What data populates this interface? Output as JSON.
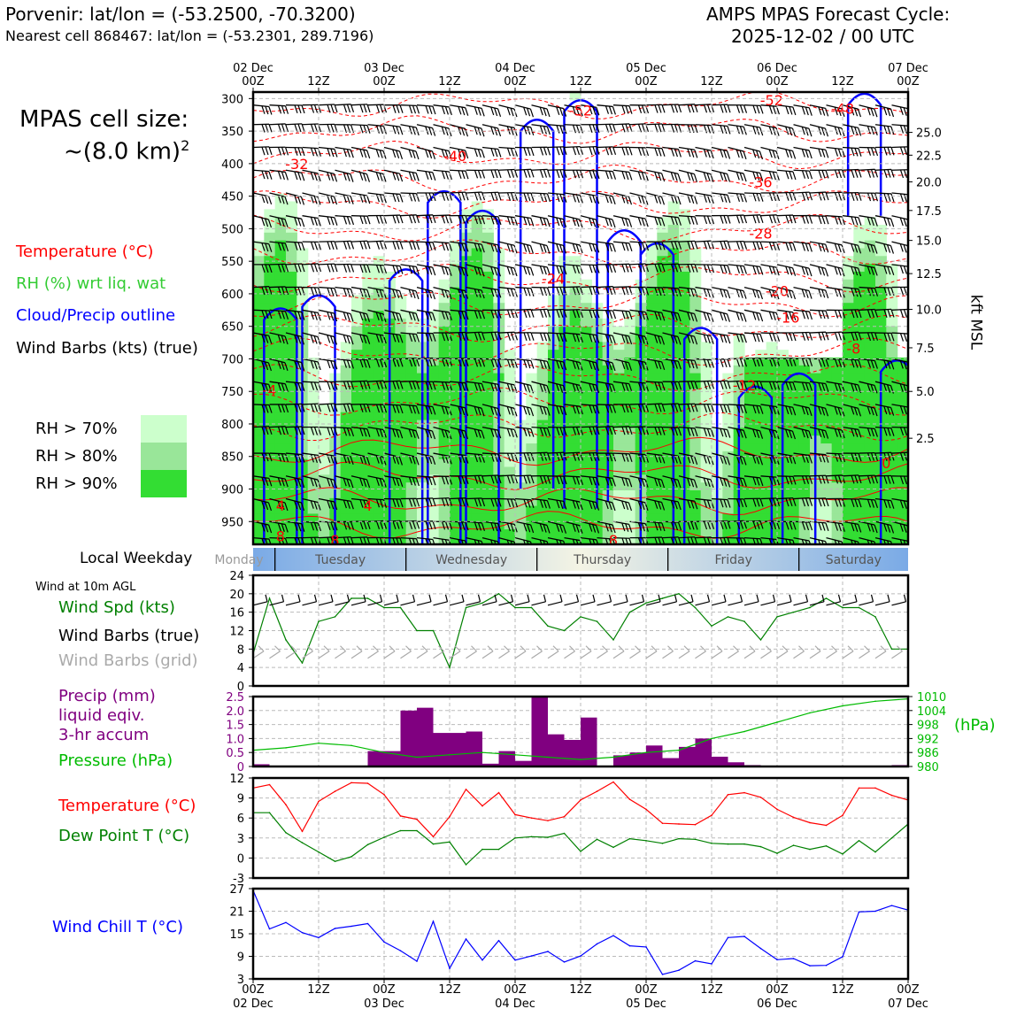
{
  "header": {
    "location": "Porvenir: lat/lon = (-53.2500, -70.3200)",
    "nearest_cell": "Nearest cell 868467: lat/lon = (-53.2301, 289.7196)",
    "cycle_title": "AMPS MPAS Forecast Cycle:",
    "cycle_time": "2025-12-02 / 00 UTC"
  },
  "cell_size": {
    "line1": "MPAS cell size:",
    "line2_prefix": "~(8.0 km)",
    "line2_sup": "2"
  },
  "legend_main": {
    "temperature": "Temperature (°C)",
    "rh": "RH (%) wrt liq. wat",
    "cloud": "Cloud/Precip outline",
    "wind": "Wind Barbs (kts) (true)",
    "rh70": "RH > 70%",
    "rh80": "RH > 80%",
    "rh90": "RH > 90%"
  },
  "colors": {
    "temperature": "#ff0000",
    "rh_label": "#33cc33",
    "cloud": "#0000ff",
    "rh70": "#ccffcc",
    "rh80": "#99e699",
    "rh90": "#33dd33",
    "wind_speed": "#008000",
    "dewpoint": "#008000",
    "precip": "#800080",
    "pressure": "#00bb00",
    "windchill": "#0000ff"
  },
  "weekday": {
    "label": "Local Weekday",
    "days": [
      "Monday",
      "Tuesday",
      "Wednesday",
      "Thursday",
      "Friday",
      "Saturday"
    ]
  },
  "time_axis": {
    "top_dates": [
      "02 Dec",
      "03 Dec",
      "04 Dec",
      "05 Dec",
      "06 Dec",
      "07 Dec"
    ],
    "hours": [
      "00Z",
      "12Z",
      "00Z",
      "12Z",
      "00Z",
      "12Z",
      "00Z",
      "12Z",
      "00Z",
      "12Z",
      "00Z"
    ],
    "bottom_dates": [
      "02 Dec",
      "03 Dec",
      "04 Dec",
      "05 Dec",
      "06 Dec",
      "07 Dec"
    ]
  },
  "panel_wind": {
    "title": "Wind at 10m AGL",
    "speed_label": "Wind Spd (kts)",
    "barbs_true_label": "Wind Barbs (true)",
    "barbs_grid_label": "Wind Barbs (grid)"
  },
  "panel_precip": {
    "label1": "Precip (mm)",
    "label2": "liquid eqiv.",
    "label3": "3-hr accum",
    "pressure_label": "Pressure (hPa)",
    "right_unit": "(hPa)"
  },
  "panel_temp": {
    "temp_label": "Temperature (°C)",
    "dew_label": "Dew Point T (°C)"
  },
  "panel_chill": {
    "label": "Wind Chill T (°C)"
  },
  "right_axis": {
    "title": "kft MSL"
  },
  "chart_data": [
    {
      "type": "heatmap",
      "title": "Time-height cross section",
      "x_hours": [
        0,
        120
      ],
      "ylabel": "Pressure (hPa)",
      "ylim": [
        985,
        290
      ],
      "yticks": [
        300,
        350,
        400,
        450,
        500,
        550,
        600,
        650,
        700,
        750,
        800,
        850,
        900,
        950
      ],
      "right_ticks_kft": [
        "25.0",
        "22.5",
        "20.0",
        "17.5",
        "15.0",
        "12.5",
        "10.0",
        "7.5",
        "5.0",
        "2.5"
      ],
      "right_tick_pressures": [
        352,
        387,
        428,
        472,
        518,
        569,
        624,
        683,
        750,
        822
      ],
      "temperature_labels": [
        {
          "text": "-52",
          "t": 60,
          "p": 318
        },
        {
          "text": "-52",
          "t": 95,
          "p": 302
        },
        {
          "text": "-48",
          "t": 108,
          "p": 315
        },
        {
          "text": "-40",
          "t": 37,
          "p": 388
        },
        {
          "text": "-32",
          "t": 8,
          "p": 400
        },
        {
          "text": "-36",
          "t": 93,
          "p": 428
        },
        {
          "text": "-28",
          "t": 93,
          "p": 507
        },
        {
          "text": "-24",
          "t": 55,
          "p": 576
        },
        {
          "text": "-20",
          "t": 96,
          "p": 595
        },
        {
          "text": "-16",
          "t": 98,
          "p": 636
        },
        {
          "text": "-8",
          "t": 110,
          "p": 684
        },
        {
          "text": "-12",
          "t": 90,
          "p": 740
        },
        {
          "text": "-4",
          "t": 3,
          "p": 748
        },
        {
          "text": "0",
          "t": 116,
          "p": 860
        },
        {
          "text": "4",
          "t": 5,
          "p": 925
        },
        {
          "text": "4",
          "t": 21,
          "p": 925
        },
        {
          "text": "8",
          "t": 5,
          "p": 972
        },
        {
          "text": "8",
          "t": 15,
          "p": 978
        },
        {
          "text": "8",
          "t": 66,
          "p": 978
        }
      ]
    },
    {
      "type": "line",
      "title": "Wind at 10m AGL",
      "ylabel": "Wind Spd (kts)",
      "ylim": [
        0,
        24
      ],
      "yticks": [
        0,
        4,
        8,
        12,
        16,
        20,
        24
      ],
      "x_hours": [
        0,
        3,
        6,
        9,
        12,
        15,
        18,
        21,
        24,
        27,
        30,
        33,
        36,
        39,
        42,
        45,
        48,
        51,
        54,
        57,
        60,
        63,
        66,
        69,
        72,
        75,
        78,
        81,
        84,
        87,
        90,
        93,
        96,
        99,
        102,
        105,
        108,
        111,
        114,
        117,
        120
      ],
      "series": [
        {
          "name": "Wind Spd (kts)",
          "values": [
            7,
            19,
            10,
            5,
            14,
            15,
            19,
            19,
            17,
            17,
            12,
            12,
            4,
            17,
            18,
            20,
            17,
            17,
            13,
            12,
            15,
            14,
            10,
            16,
            18,
            19,
            20,
            17,
            13,
            15,
            14,
            10,
            15,
            16,
            17,
            19,
            17,
            17,
            15,
            8,
            8
          ]
        }
      ]
    },
    {
      "type": "bar",
      "title": "3-hr Precip and Pressure",
      "ylabel": "Precip (mm)",
      "ylim": [
        0,
        2.5
      ],
      "yticks": [
        0,
        0.5,
        1.0,
        1.5,
        2.0,
        2.5
      ],
      "x_hours_bars": [
        3,
        6,
        9,
        12,
        15,
        18,
        21,
        24,
        27,
        30,
        33,
        36,
        39,
        42,
        45,
        48,
        51,
        54,
        57,
        60,
        63,
        66,
        69,
        72,
        75,
        78,
        81,
        84,
        87,
        90,
        93,
        96,
        99,
        102,
        105,
        108,
        111,
        114,
        117,
        120
      ],
      "precip": [
        0.08,
        0,
        0,
        0,
        0,
        0,
        0,
        0.55,
        0.55,
        2.0,
        2.1,
        1.2,
        1.2,
        1.25,
        0.1,
        0.55,
        0.2,
        2.5,
        1.15,
        0.95,
        1.75,
        0,
        0.4,
        0.5,
        0.75,
        0.3,
        0.7,
        1.0,
        0.35,
        0.15,
        0.05,
        0,
        0,
        0,
        0,
        0,
        0,
        0,
        0,
        0.05
      ],
      "pressure_axis": {
        "ylim": [
          980,
          1010
        ],
        "yticks": [
          980,
          986,
          992,
          998,
          1004,
          1010
        ]
      },
      "pressure_x_hours": [
        0,
        6,
        12,
        18,
        24,
        30,
        36,
        42,
        48,
        54,
        60,
        66,
        72,
        78,
        84,
        90,
        96,
        102,
        108,
        114,
        120
      ],
      "pressure": [
        987,
        988,
        990,
        989,
        986,
        984,
        985,
        986,
        985,
        984,
        983,
        984,
        986,
        987,
        992,
        995,
        999,
        1003,
        1006,
        1008,
        1009
      ]
    },
    {
      "type": "line",
      "title": "Temperature and Dew Point",
      "ylim": [
        -3,
        12
      ],
      "yticks": [
        -3,
        0,
        3,
        6,
        9,
        12
      ],
      "x_hours": [
        0,
        3,
        6,
        9,
        12,
        15,
        18,
        21,
        24,
        27,
        30,
        33,
        36,
        39,
        42,
        45,
        48,
        51,
        54,
        57,
        60,
        63,
        66,
        69,
        72,
        75,
        78,
        81,
        84,
        87,
        90,
        93,
        96,
        99,
        102,
        105,
        108,
        111,
        114,
        117,
        120
      ],
      "series": [
        {
          "name": "Temperature (°C)",
          "values": [
            10.5,
            11,
            8,
            4,
            8.5,
            10,
            11.3,
            11.2,
            9.5,
            6.3,
            5.8,
            3.2,
            6.2,
            10.3,
            7.8,
            9.8,
            6.5,
            6,
            5.6,
            6.2,
            8.7,
            10,
            11.4,
            8.8,
            7.3,
            5.2,
            5.1,
            5,
            6.4,
            9.5,
            9.8,
            9.1,
            7.3,
            6.1,
            5.3,
            4.9,
            6.4,
            10.5,
            10.5,
            9.4,
            8.7
          ]
        },
        {
          "name": "Dew Point T (°C)",
          "values": [
            6.8,
            6.8,
            3.8,
            2.3,
            0.9,
            -0.5,
            0.2,
            2,
            3.1,
            4.1,
            4.1,
            2.1,
            2.4,
            -1,
            1.3,
            1.3,
            3,
            3.2,
            3.1,
            3.7,
            1,
            2.8,
            1.6,
            2.9,
            2.6,
            2.2,
            2.9,
            2.8,
            2.2,
            2.1,
            2.1,
            1.7,
            0.7,
            1.9,
            1.3,
            1.8,
            0.6,
            2.6,
            0.9,
            3,
            5.1
          ]
        }
      ]
    },
    {
      "type": "line",
      "title": "Wind Chill",
      "ylim": [
        3,
        27
      ],
      "yticks": [
        3,
        9,
        15,
        21,
        27
      ],
      "x_hours": [
        0,
        3,
        6,
        9,
        12,
        15,
        18,
        21,
        24,
        27,
        30,
        33,
        36,
        39,
        42,
        45,
        48,
        51,
        54,
        57,
        60,
        63,
        66,
        69,
        72,
        75,
        78,
        81,
        84,
        87,
        90,
        93,
        96,
        99,
        102,
        105,
        108,
        111,
        114,
        117,
        120
      ],
      "series": [
        {
          "name": "Wind Chill T (°C)",
          "values": [
            26.5,
            16.3,
            18,
            15.3,
            14,
            16.4,
            17,
            17.7,
            12.8,
            10.5,
            7.7,
            18.3,
            5.8,
            13.6,
            8,
            13.2,
            8,
            9.1,
            10.3,
            7.5,
            9.1,
            12.3,
            14.5,
            11.8,
            11.5,
            4.2,
            5.3,
            7.8,
            7,
            14,
            14.3,
            11.1,
            8.1,
            8.4,
            6.5,
            6.6,
            8.9,
            20.8,
            21,
            22.5,
            21.3
          ]
        }
      ]
    }
  ]
}
